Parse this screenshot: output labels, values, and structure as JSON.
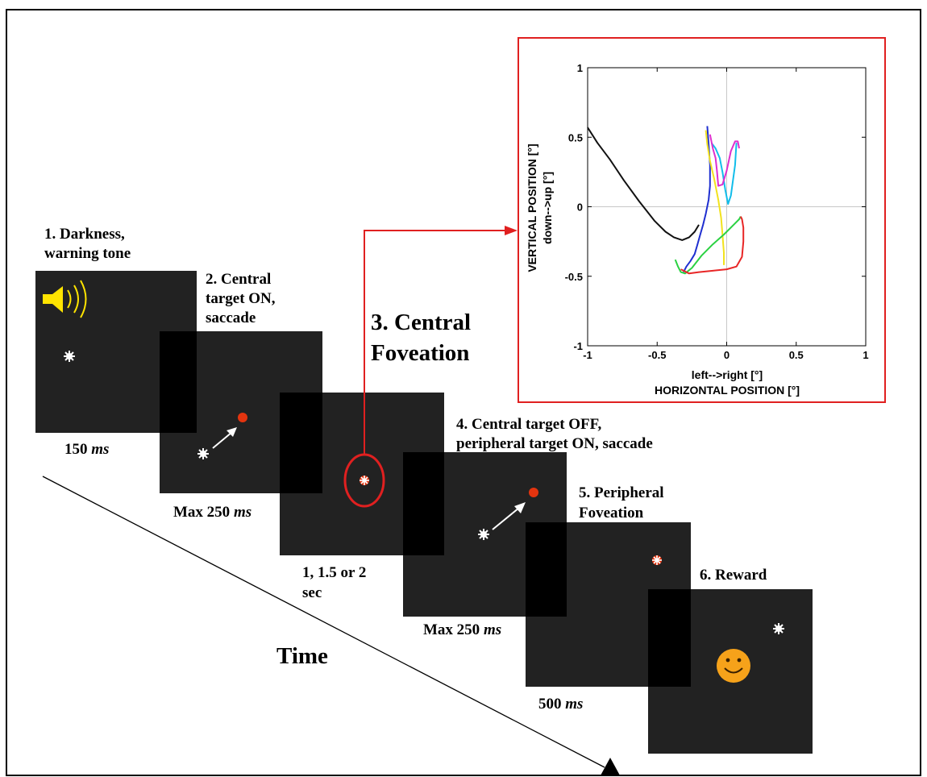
{
  "steps": [
    {
      "label_lines": [
        "1. Darkness,",
        "warning tone"
      ],
      "duration": "150",
      "unit": "ms"
    },
    {
      "label_lines": [
        "2. Central",
        "target ON,",
        "saccade"
      ],
      "duration": "Max 250",
      "unit": "ms"
    },
    {
      "label_lines": [
        "3. Central",
        "Foveation"
      ],
      "duration_lines": [
        "1, 1.5 or 2",
        "sec"
      ]
    },
    {
      "label_lines": [
        "4. Central target OFF,",
        "peripheral target ON, saccade"
      ],
      "duration": "Max 250",
      "unit": "ms"
    },
    {
      "label_lines": [
        "5. Peripheral",
        "Foveation"
      ],
      "duration": "500",
      "unit": "ms"
    },
    {
      "label_lines": [
        "6. Reward"
      ]
    }
  ],
  "time_label": "Time",
  "colors": {
    "screen": "#222222",
    "border_band": "#000000",
    "target_red": "#e3340f",
    "highlight": "#e02020",
    "speaker": "#ffe400",
    "smiley": "#f6a21a"
  },
  "chart_data": {
    "type": "line",
    "xlabel_lines": [
      "left-->right [°]",
      "HORIZONTAL POSITION [°]"
    ],
    "ylabel_lines": [
      "VERTICAL POSITION [°]",
      "down-->up [°]"
    ],
    "xlim": [
      -1,
      1
    ],
    "ylim": [
      -1,
      1
    ],
    "xticks": [
      "-1",
      "-0.5",
      "0",
      "0.5",
      "1"
    ],
    "yticks": [
      "-1",
      "-0.5",
      "0",
      "0.5",
      "1"
    ],
    "grid": "zero-lines",
    "series": [
      {
        "color": "#111111",
        "x": [
          -1,
          -0.93,
          -0.84,
          -0.74,
          -0.63,
          -0.52,
          -0.44,
          -0.38,
          -0.32,
          -0.27,
          -0.23,
          -0.2
        ],
        "y": [
          0.57,
          0.46,
          0.34,
          0.19,
          0.04,
          -0.1,
          -0.18,
          -0.22,
          -0.24,
          -0.22,
          -0.18,
          -0.13
        ]
      },
      {
        "color": "#1f2fd0",
        "x": [
          -0.14,
          -0.13,
          -0.12,
          -0.12,
          -0.13,
          -0.15,
          -0.17,
          -0.19,
          -0.21,
          -0.23,
          -0.26,
          -0.29,
          -0.31
        ],
        "y": [
          0.58,
          0.45,
          0.3,
          0.15,
          0.05,
          -0.05,
          -0.13,
          -0.2,
          -0.27,
          -0.34,
          -0.39,
          -0.43,
          -0.47
        ]
      },
      {
        "color": "#12bdea",
        "x": [
          -0.11,
          -0.08,
          -0.05,
          -0.03,
          -0.01,
          0.01,
          0.03,
          0.06,
          0.07
        ],
        "y": [
          0.46,
          0.42,
          0.35,
          0.25,
          0.12,
          0.02,
          0.08,
          0.3,
          0.46
        ]
      },
      {
        "color": "#dd2fcf",
        "x": [
          -0.12,
          -0.1,
          -0.08,
          -0.07,
          -0.06,
          -0.03,
          0.0,
          0.03,
          0.06,
          0.08,
          0.09
        ],
        "y": [
          0.52,
          0.42,
          0.35,
          0.26,
          0.15,
          0.16,
          0.26,
          0.4,
          0.47,
          0.47,
          0.42
        ]
      },
      {
        "color": "#f2e21e",
        "x": [
          -0.15,
          -0.14,
          -0.12,
          -0.09,
          -0.06,
          -0.04,
          -0.03,
          -0.02,
          -0.02
        ],
        "y": [
          0.55,
          0.45,
          0.33,
          0.2,
          0.05,
          -0.08,
          -0.2,
          -0.33,
          -0.42
        ]
      },
      {
        "color": "#2bd142",
        "x": [
          -0.37,
          -0.35,
          -0.33,
          -0.3,
          -0.25,
          -0.18,
          -0.1,
          -0.02,
          0.05,
          0.09,
          0.1
        ],
        "y": [
          -0.38,
          -0.43,
          -0.47,
          -0.48,
          -0.44,
          -0.35,
          -0.27,
          -0.2,
          -0.13,
          -0.09,
          -0.07
        ]
      },
      {
        "color": "#e82626",
        "x": [
          -0.33,
          -0.27,
          -0.2,
          -0.1,
          0.0,
          0.07,
          0.11,
          0.12,
          0.12,
          0.11,
          0.1
        ],
        "y": [
          -0.45,
          -0.48,
          -0.47,
          -0.46,
          -0.45,
          -0.43,
          -0.36,
          -0.25,
          -0.15,
          -0.09,
          -0.07
        ]
      }
    ]
  }
}
